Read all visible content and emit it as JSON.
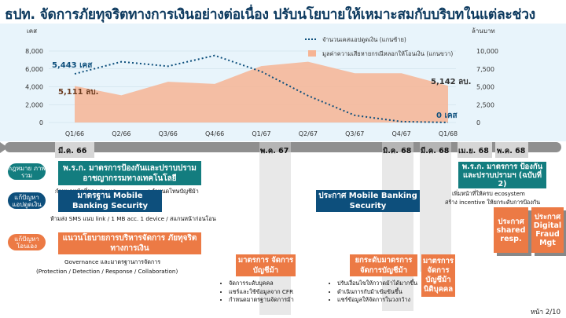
{
  "title": "ธปท. จัดการภัยทุจริตทางการเงินอย่างต่อเนื่อง ปรับนโยบายให้เหมาะสมกับบริบทในแต่ละช่วง",
  "chart_data": {
    "type": "line",
    "categories": [
      "Q1/66",
      "Q2/66",
      "Q3/66",
      "Q4/66",
      "Q1/67",
      "Q2/67",
      "Q3/67",
      "Q4/67",
      "Q1/68"
    ],
    "left_axis": {
      "unit": "เคส",
      "ticks": [
        "8,000",
        "6,000",
        "4,000",
        "2,000",
        "0"
      ],
      "ylim": [
        0,
        8000
      ]
    },
    "right_axis": {
      "unit": "ล้านบาท",
      "ticks": [
        "10,000",
        "7,500",
        "5,000",
        "2,500",
        "0"
      ],
      "ylim": [
        0,
        10000
      ]
    },
    "series": [
      {
        "name": "จำนวนเคสแอปดูดเงิน (แกนซ้าย)",
        "type": "line",
        "color": "#0d4f7c",
        "values": [
          5443,
          6800,
          6300,
          7500,
          5700,
          3000,
          800,
          100,
          0
        ]
      },
      {
        "name": "มูลค่าความเสียหายกรณีหลอกให้โอนเงิน (แกนขวา)",
        "type": "area",
        "color": "#f6b494",
        "values": [
          5111,
          3800,
          5700,
          5400,
          7900,
          8500,
          6900,
          6900,
          5142
        ]
      }
    ],
    "annotations": {
      "start_cases": "5,443 เคส",
      "end_cases": "0 เคส",
      "start_loss": "5,111 ลบ.",
      "end_loss": "5,142 ลบ."
    }
  },
  "timeline": {
    "dates": [
      "มี.ค. 66",
      "พ.ค. 67",
      "มิ.ค. 68",
      "มี.ค. 68",
      "เม.ย. 68",
      "พ.ค. 68"
    ]
  },
  "rows": {
    "law": "กฎหมาย ภาพรวม",
    "app": "แก้ปัญหา แอปดูดเงิน",
    "scam": "แก้ปัญหา โอนเอง"
  },
  "boxes": {
    "decree1": "พ.ร.ก. มาตรการป้องกันและปราบปราม อาชญากรรมทางเทคโนโลยี",
    "decree1_note": "กำหนดหน้าที่ของ สง. และ e-money / กำหนดโทษบัญชีม้า",
    "decree2": "พ.ร.ก. มาตรการ ป้องกันและปราบปรามฯ (ฉบับที่ 2)",
    "decree2_note1": "เพิ่มหน้าที่ให้ครบ ecosystem",
    "decree2_note2": "สร้าง incentive ให้ยกระดับการป้องกัน",
    "mbs": "มาตรฐาน Mobile Banking Security",
    "mbs_note": "ห้ามส่ง SMS แนบ link / 1 MB acc. 1 device / สแกนหน้าก่อนโอน",
    "announce": "ประกาศ Mobile Banking Security",
    "guideline": "แนวนโยบายการบริหารจัดการ ภัยทุจริตทางการเงิน",
    "guideline_note1": "Governance และมาตรฐานการจัดการ",
    "guideline_note2": "(Protection / Detection / Response / Collaboration)",
    "mule1": "มาตรการ จัดการบัญชีม้า",
    "mule1_bullets": [
      "จัดการระดับบุคคล",
      "แชร์และใช้ข้อมูลจาก CFR",
      "กำหนดมาตรฐานจัดการม้า"
    ],
    "mule2": "ยกระดับมาตรการ จัดการบัญชีม้า",
    "mule2_bullets": [
      "ปรับเงื่อนไขให้กวาดม้าได้มากขึ้น",
      "ดำเนินการกับม้าเข้มข้นขึ้น",
      "แชร์ข้อมูลให้จัดการในวงกว้าง"
    ],
    "mule3": "มาตรการ จัดการ บัญชีม้า นิติบุคคล",
    "shared": "ประกาศ shared resp.",
    "digital": "ประกาศ Digital Fraud Mgt"
  },
  "page": "หน้า 2/10"
}
